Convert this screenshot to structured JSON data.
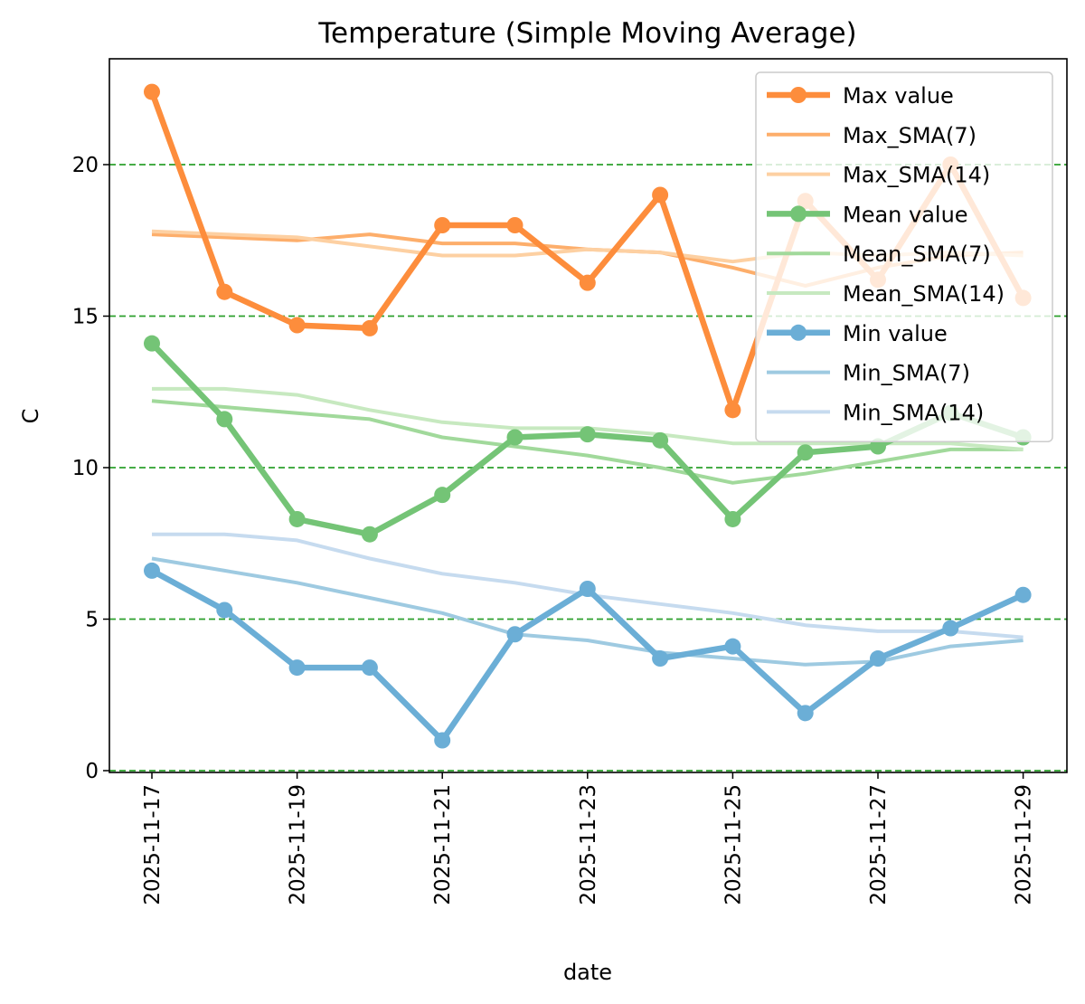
{
  "chart_data": {
    "type": "line",
    "title": "Temperature (Simple Moving Average)",
    "xlabel": "date",
    "ylabel": "C",
    "ylim": [
      0,
      23.5
    ],
    "yticks": [
      0,
      5,
      10,
      15,
      20
    ],
    "x": [
      "2025-11-17",
      "2025-11-18",
      "2025-11-19",
      "2025-11-20",
      "2025-11-21",
      "2025-11-22",
      "2025-11-23",
      "2025-11-24",
      "2025-11-25",
      "2025-11-26",
      "2025-11-27",
      "2025-11-28",
      "2025-11-29"
    ],
    "xtick_labels": [
      "2025-11-17",
      "2025-11-19",
      "2025-11-21",
      "2025-11-23",
      "2025-11-25",
      "2025-11-27",
      "2025-11-29"
    ],
    "grid": "horizontal dashed green at y ticks",
    "legend_position": "top-right",
    "series": [
      {
        "name": "Max value",
        "color": "#fd8d3c",
        "style": "thick-marker",
        "values": [
          22.4,
          15.8,
          14.7,
          14.6,
          18.0,
          18.0,
          16.1,
          19.0,
          11.9,
          18.8,
          16.2,
          20.0,
          15.6
        ]
      },
      {
        "name": "Max_SMA(7)",
        "color": "#fdae6b",
        "style": "medium",
        "values": [
          17.7,
          17.6,
          17.5,
          17.7,
          17.4,
          17.4,
          17.2,
          17.1,
          16.6,
          16.0,
          16.6,
          17.0,
          17.1
        ]
      },
      {
        "name": "Max_SMA(14)",
        "color": "#fdd0a2",
        "style": "medium",
        "values": [
          17.8,
          17.7,
          17.6,
          17.3,
          17.0,
          17.0,
          17.2,
          17.1,
          16.8,
          17.1,
          17.0,
          17.1,
          17.0
        ]
      },
      {
        "name": "Mean value",
        "color": "#74c476",
        "style": "thick-marker",
        "values": [
          14.1,
          11.6,
          8.3,
          7.8,
          9.1,
          11.0,
          11.1,
          10.9,
          8.3,
          10.5,
          10.7,
          11.8,
          11.0
        ]
      },
      {
        "name": "Mean_SMA(7)",
        "color": "#a1d99b",
        "style": "medium",
        "values": [
          12.2,
          12.0,
          11.8,
          11.6,
          11.0,
          10.7,
          10.4,
          10.0,
          9.5,
          9.8,
          10.2,
          10.6,
          10.6
        ]
      },
      {
        "name": "Mean_SMA(14)",
        "color": "#c7e9c0",
        "style": "medium",
        "values": [
          12.6,
          12.6,
          12.4,
          11.9,
          11.5,
          11.3,
          11.3,
          11.1,
          10.8,
          10.8,
          10.8,
          10.8,
          10.6
        ]
      },
      {
        "name": "Min value",
        "color": "#6baed6",
        "style": "thick-marker",
        "values": [
          6.6,
          5.3,
          3.4,
          3.4,
          1.0,
          4.5,
          6.0,
          3.7,
          4.1,
          1.9,
          3.7,
          4.7,
          5.8
        ]
      },
      {
        "name": "Min_SMA(7)",
        "color": "#9ecae1",
        "style": "medium",
        "values": [
          7.0,
          6.6,
          6.2,
          5.7,
          5.2,
          4.5,
          4.3,
          3.9,
          3.7,
          3.5,
          3.6,
          4.1,
          4.3
        ]
      },
      {
        "name": "Min_SMA(14)",
        "color": "#c6dbef",
        "style": "medium",
        "values": [
          7.8,
          7.8,
          7.6,
          7.0,
          6.5,
          6.2,
          5.8,
          5.5,
          5.2,
          4.8,
          4.6,
          4.6,
          4.4
        ]
      }
    ]
  }
}
